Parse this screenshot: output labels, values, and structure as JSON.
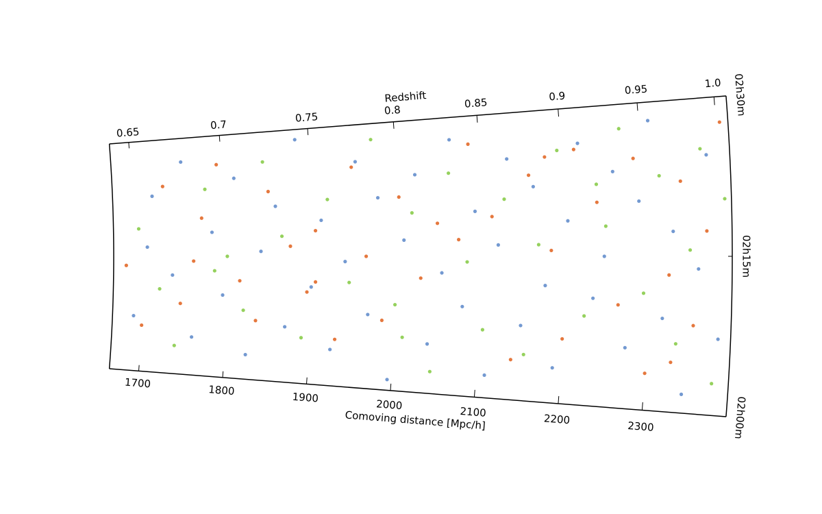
{
  "chart_data": {
    "type": "scatter",
    "xlabel": "Comoving distance [Mpc/h]",
    "x2label": "Redshift",
    "xlim": [
      1665,
      2400
    ],
    "xticks": [
      1700,
      1800,
      1900,
      2000,
      2100,
      2200,
      2300
    ],
    "x2ticks": [
      0.65,
      0.7,
      0.75,
      0.8,
      0.85,
      0.9,
      0.95,
      {
        "value": 1.0,
        "label": "1.0"
      }
    ],
    "ylim": [
      2.0,
      2.5
    ],
    "yticks": [
      {
        "value": 2.5,
        "label": "02h30m"
      },
      {
        "value": 2.25,
        "label": "02h15m"
      },
      {
        "value": 2.0,
        "label": "02h00m"
      }
    ],
    "series": [
      {
        "color": "#5b87c9",
        "x": [
          1690,
          1712,
          1735,
          1748,
          1760,
          1782,
          1795,
          1810,
          1825,
          1840,
          1858,
          1870,
          1885,
          1900,
          1912,
          1925,
          1940,
          1955,
          1968,
          1980,
          1995,
          2010,
          2025,
          2040,
          2055,
          2068,
          2080,
          2095,
          2110,
          2122,
          2135,
          2150,
          2165,
          2178,
          2190,
          2205,
          2220,
          2235,
          2248,
          2260,
          2275,
          2290,
          2305,
          2318,
          2330,
          2345,
          2360,
          2372,
          2385,
          1705
        ],
        "y": [
          2.12,
          2.38,
          2.21,
          2.45,
          2.08,
          2.3,
          2.17,
          2.41,
          2.05,
          2.26,
          2.35,
          2.11,
          2.48,
          2.19,
          2.32,
          2.07,
          2.24,
          2.43,
          2.14,
          2.36,
          2.02,
          2.28,
          2.4,
          2.09,
          2.22,
          2.46,
          2.16,
          2.33,
          2.04,
          2.27,
          2.42,
          2.13,
          2.37,
          2.2,
          2.06,
          2.31,
          2.44,
          2.18,
          2.25,
          2.39,
          2.1,
          2.34,
          2.47,
          2.15,
          2.29,
          2.03,
          2.23,
          2.41,
          2.12,
          2.27
        ]
      },
      {
        "color": "#e0601c",
        "x": [
          1680,
          1700,
          1725,
          1745,
          1770,
          1790,
          1815,
          1835,
          1850,
          1875,
          1895,
          1905,
          1930,
          1950,
          1965,
          1985,
          2005,
          2030,
          2050,
          2075,
          2090,
          2115,
          2140,
          2160,
          2185,
          2200,
          2215,
          2240,
          2265,
          2285,
          2300,
          2325,
          2340,
          2355,
          2370,
          2390,
          1760,
          1905,
          2180,
          2330
        ],
        "y": [
          2.23,
          2.1,
          2.4,
          2.15,
          2.33,
          2.44,
          2.2,
          2.12,
          2.38,
          2.27,
          2.18,
          2.3,
          2.09,
          2.42,
          2.25,
          2.13,
          2.36,
          2.21,
          2.31,
          2.28,
          2.45,
          2.32,
          2.07,
          2.39,
          2.26,
          2.11,
          2.43,
          2.34,
          2.17,
          2.41,
          2.06,
          2.22,
          2.37,
          2.14,
          2.29,
          2.46,
          2.24,
          2.2,
          2.42,
          2.08
        ]
      },
      {
        "color": "#82c941",
        "x": [
          1695,
          1720,
          1740,
          1775,
          1800,
          1820,
          1845,
          1865,
          1890,
          1920,
          1945,
          1975,
          2000,
          2020,
          2045,
          2065,
          2085,
          2105,
          2130,
          2155,
          2170,
          2195,
          2225,
          2250,
          2270,
          2295,
          2315,
          2335,
          2350,
          2365,
          2380,
          2392,
          1785,
          2010,
          2240
        ],
        "y": [
          2.31,
          2.18,
          2.06,
          2.39,
          2.25,
          2.14,
          2.44,
          2.29,
          2.09,
          2.36,
          2.2,
          2.47,
          2.16,
          2.33,
          2.04,
          2.4,
          2.24,
          2.12,
          2.35,
          2.08,
          2.27,
          2.43,
          2.15,
          2.3,
          2.46,
          2.19,
          2.38,
          2.11,
          2.26,
          2.42,
          2.05,
          2.34,
          2.22,
          2.1,
          2.37
        ]
      }
    ]
  }
}
